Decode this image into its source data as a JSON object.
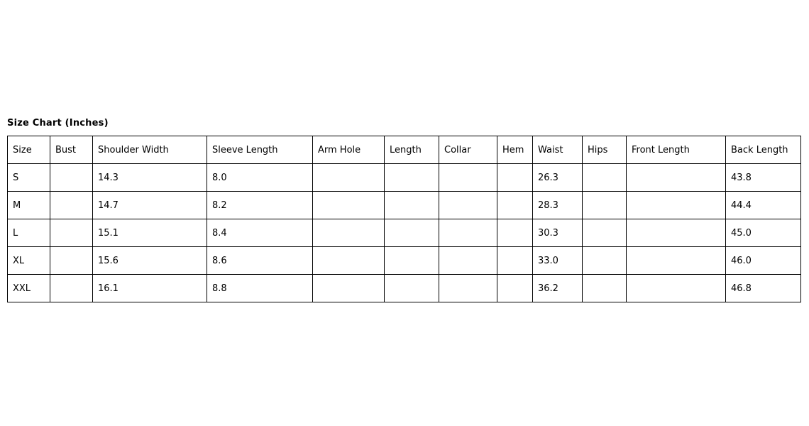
{
  "page": {
    "background": "#ffffff",
    "text_color": "#000000",
    "table_border_color": "#000000"
  },
  "size_chart": {
    "title": "Size Chart (Inches)",
    "columns": [
      "Size",
      "Bust",
      "Shoulder Width",
      "Sleeve Length",
      "Arm Hole",
      "Length",
      "Collar",
      "Hem",
      "Waist",
      "Hips",
      "Front Length",
      "Back Length"
    ],
    "rows": [
      [
        "S",
        "",
        "14.3",
        "8.0",
        "",
        "",
        "",
        "",
        "26.3",
        "",
        "",
        "43.8"
      ],
      [
        "M",
        "",
        "14.7",
        "8.2",
        "",
        "",
        "",
        "",
        "28.3",
        "",
        "",
        "44.4"
      ],
      [
        "L",
        "",
        "15.1",
        "8.4",
        "",
        "",
        "",
        "",
        "30.3",
        "",
        "",
        "45.0"
      ],
      [
        "XL",
        "",
        "15.6",
        "8.6",
        "",
        "",
        "",
        "",
        "33.0",
        "",
        "",
        "46.0"
      ],
      [
        "XXL",
        "",
        "16.1",
        "8.8",
        "",
        "",
        "",
        "",
        "36.2",
        "",
        "",
        "46.8"
      ]
    ]
  }
}
